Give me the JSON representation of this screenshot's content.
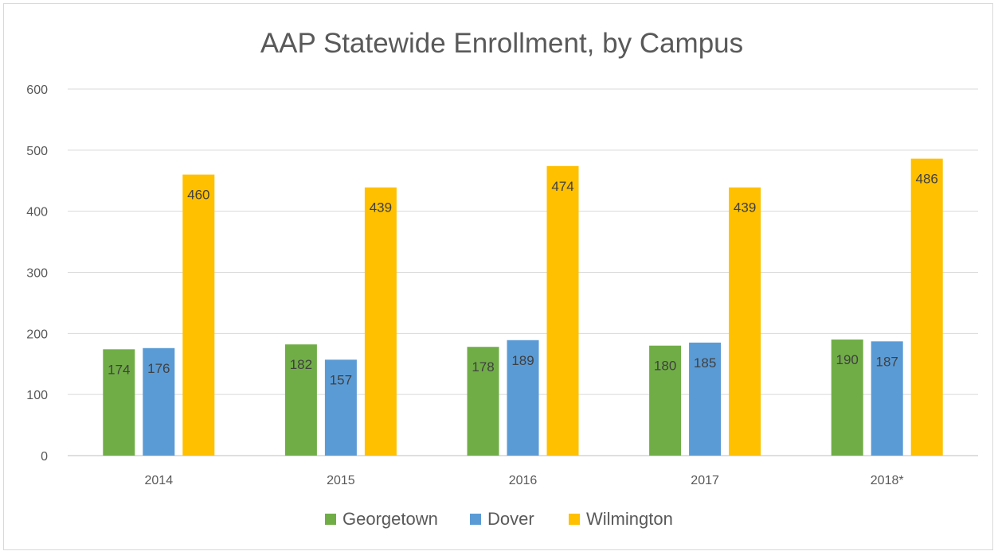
{
  "chart_data": {
    "type": "bar",
    "title": "AAP Statewide Enrollment, by Campus",
    "xlabel": "",
    "ylabel": "",
    "categories": [
      "2014",
      "2015",
      "2016",
      "2017",
      "2018*"
    ],
    "ylim": [
      0,
      600
    ],
    "yticks": [
      0,
      100,
      200,
      300,
      400,
      500,
      600
    ],
    "grid": true,
    "legend": "bottom",
    "series": [
      {
        "name": "Georgetown",
        "color": "#70ad47",
        "values": [
          174,
          182,
          178,
          180,
          190
        ]
      },
      {
        "name": "Dover",
        "color": "#5b9bd5",
        "values": [
          176,
          157,
          189,
          185,
          187
        ]
      },
      {
        "name": "Wilmington",
        "color": "#ffc000",
        "values": [
          460,
          439,
          474,
          439,
          486
        ]
      }
    ]
  }
}
